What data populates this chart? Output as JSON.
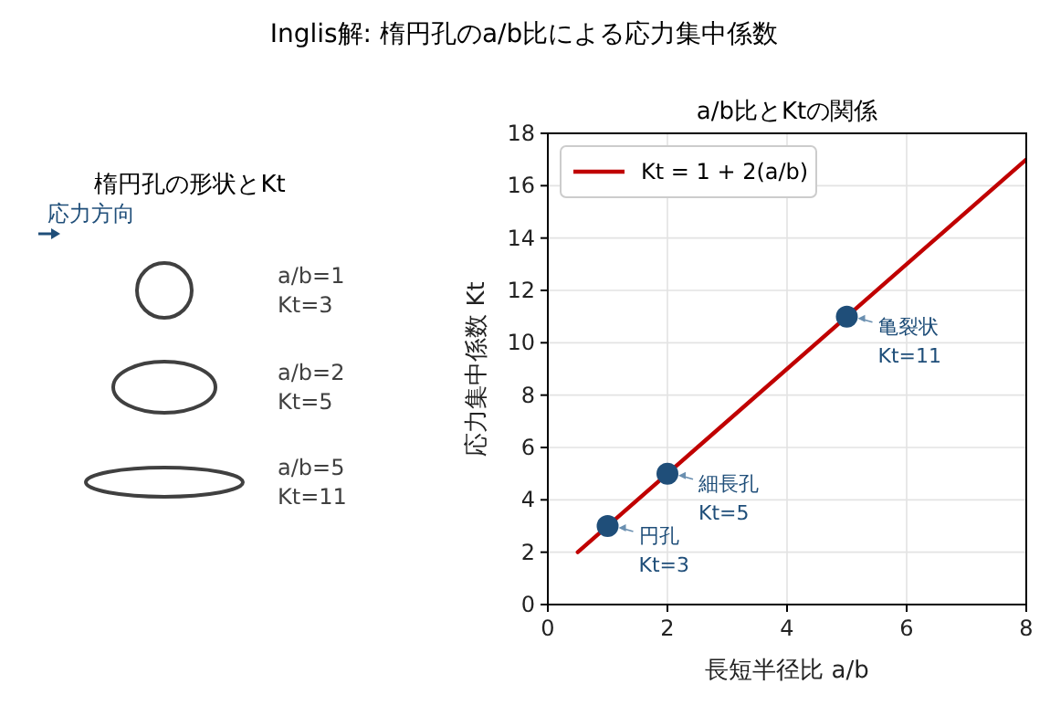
{
  "chart_data": [
    {
      "type": "other",
      "title": "Inglis解: 楕円孔のa/b比による応力集中係数",
      "subtitle": "楕円孔の形状とKt",
      "annotations": [
        "応力方向",
        "a/b=1\nKt=3",
        "a/b=2\nKt=5",
        "a/b=5\nKt=11"
      ]
    },
    {
      "type": "line",
      "title": "a/b比とKtの関係",
      "xlabel": "長短半径比 a/b",
      "ylabel": "応力集中係数 Kt",
      "xlim": [
        0,
        8
      ],
      "ylim": [
        0,
        18
      ],
      "xticks": [
        0,
        2,
        4,
        6,
        8
      ],
      "yticks": [
        0,
        2,
        4,
        6,
        8,
        10,
        12,
        14,
        16,
        18
      ],
      "grid": true,
      "legend": "top left",
      "series": [
        {
          "name": "Kt = 1 + 2(a/b)",
          "type": "line",
          "color": "#c00000",
          "x": [
            0.5,
            8
          ],
          "values": [
            2,
            17
          ],
          "marker": "none"
        },
        {
          "type": "scatter",
          "color": "#1f4e79",
          "x": [
            1,
            2,
            5
          ],
          "values": [
            3,
            5,
            11
          ],
          "marker": "circle"
        }
      ],
      "annotations": [
        {
          "text": "円孔\nKt=3",
          "x": 1,
          "y": 3
        },
        {
          "text": "細長孔\nKt=5",
          "x": 2,
          "y": 5
        },
        {
          "text": "亀裂状\nKt=11",
          "x": 5,
          "y": 11
        }
      ]
    }
  ]
}
